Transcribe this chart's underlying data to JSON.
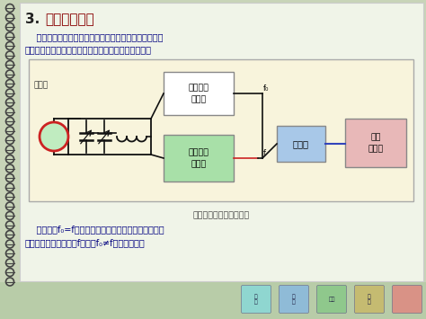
{
  "title_num": "3.",
  "title_text": "高频电导滴定",
  "title_num_color": "#222222",
  "title_text_color": "#880000",
  "outer_bg": "#c8d4b8",
  "inner_bg": "#f0f4e8",
  "para1_line1": "    利用高频电场下极化电流的变化来跟踪滴定过程的方法",
  "para1_line2": "称为高频滴定法。特别适合于低电导非水溶液的滴定：",
  "diagram_bg": "#f8f4dc",
  "diagram_border": "#aaaaaa",
  "diagram_label": "高频电导滴定装置示意图",
  "cell_label": "滴定池",
  "box1_text": "固定频率\n振荡器",
  "box1_bg": "#ffffff",
  "box1_border": "#888888",
  "box2_text": "可变频率\n振荡器",
  "box2_bg": "#a8e0a8",
  "box2_border": "#888888",
  "box3_text": "混频器",
  "box3_bg": "#a8c8e8",
  "box3_border": "#888888",
  "box4_text": "差频\n检测器",
  "box4_bg": "#e8b8b8",
  "box4_border": "#888888",
  "label_f0": "f₀",
  "label_f": "f",
  "para2_line1": "    开始时，f₀=f，滴定后，电解质浓度改变时，引起电",
  "para2_line2": "容改变，导致输出频率f改变，f₀≠f，给出信号。",
  "text_color": "#000080",
  "nav_bg": "#b8cca8",
  "spiral_bg": "#c8d4b8",
  "spiral_color": "#444444",
  "line_black": "#111111",
  "line_red": "#cc2222",
  "line_blue": "#3344bb",
  "circle_fill": "#c0ecc0",
  "circle_edge": "#cc2222"
}
